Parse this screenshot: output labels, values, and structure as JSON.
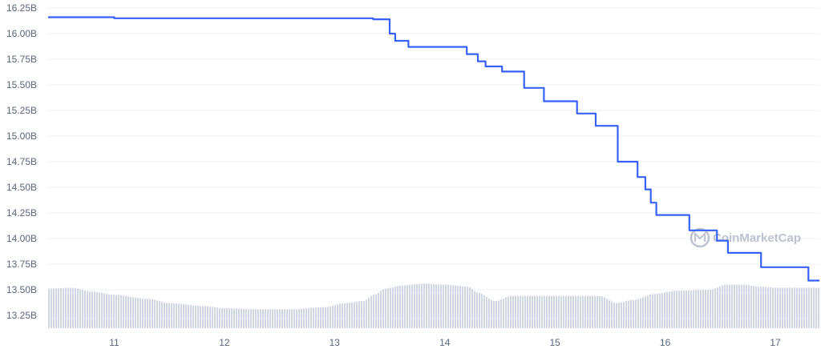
{
  "chart_data": {
    "type": "line",
    "title": "",
    "xlabel": "",
    "ylabel": "",
    "grid": true,
    "watermark": "CoinMarketCap",
    "colors": {
      "line": "#3861fb",
      "volume": "#cfd6e4",
      "grid": "#eff2f5",
      "text": "#58667e"
    },
    "ylim": [
      13.125,
      16.25
    ],
    "xlim": [
      10.4,
      17.4
    ],
    "y_ticks": [
      16.25,
      16.0,
      15.75,
      15.5,
      15.25,
      15.0,
      14.75,
      14.5,
      14.25,
      14.0,
      13.75,
      13.5,
      13.25
    ],
    "y_tick_labels": [
      "16.25B",
      "16.00B",
      "15.75B",
      "15.50B",
      "15.25B",
      "15.00B",
      "14.75B",
      "14.50B",
      "14.25B",
      "14.00B",
      "13.75B",
      "13.50B",
      "13.25B"
    ],
    "x_ticks": [
      11,
      12,
      13,
      14,
      15,
      16,
      17
    ],
    "x_tick_labels": [
      "11",
      "12",
      "13",
      "14",
      "15",
      "16",
      "17"
    ],
    "series": [
      {
        "x": [
          10.4,
          11.0,
          12.0,
          13.0,
          13.35,
          13.47,
          13.5,
          13.52,
          13.55,
          13.62,
          13.67,
          13.9,
          13.97,
          14.2,
          14.23,
          14.3,
          14.37,
          14.52,
          14.7,
          14.72,
          14.85,
          14.9,
          15.05,
          15.15,
          15.2,
          15.37,
          15.4,
          15.57,
          15.6,
          15.75,
          15.77,
          15.82,
          15.87,
          15.92,
          16.2,
          16.22,
          16.45,
          16.47,
          16.55,
          16.57,
          16.85,
          16.87,
          17.25,
          17.3,
          17.4
        ],
        "y": [
          16.16,
          16.15,
          16.15,
          16.15,
          16.14,
          16.14,
          16.0,
          16.0,
          15.93,
          15.93,
          15.87,
          15.87,
          15.87,
          15.8,
          15.8,
          15.73,
          15.68,
          15.63,
          15.63,
          15.47,
          15.47,
          15.34,
          15.34,
          15.34,
          15.22,
          15.1,
          15.1,
          14.75,
          14.75,
          14.6,
          14.6,
          14.48,
          14.35,
          14.23,
          14.23,
          14.08,
          14.08,
          13.98,
          13.98,
          13.86,
          13.86,
          13.72,
          13.72,
          13.59,
          13.59
        ]
      }
    ],
    "volume": {
      "x": [
        10.4,
        10.6,
        10.8,
        11.0,
        11.3,
        11.5,
        11.8,
        12.0,
        12.3,
        12.6,
        12.9,
        13.1,
        13.25,
        13.35,
        13.45,
        13.6,
        13.8,
        14.0,
        14.2,
        14.3,
        14.45,
        14.6,
        15.0,
        15.4,
        15.55,
        15.7,
        15.9,
        16.1,
        16.4,
        16.55,
        16.7,
        16.85,
        17.0,
        17.2,
        17.4
      ],
      "y": [
        13.51,
        13.52,
        13.48,
        13.45,
        13.41,
        13.37,
        13.34,
        13.32,
        13.31,
        13.31,
        13.33,
        13.37,
        13.39,
        13.45,
        13.51,
        13.54,
        13.56,
        13.55,
        13.53,
        13.47,
        13.39,
        13.44,
        13.44,
        13.44,
        13.37,
        13.4,
        13.46,
        13.49,
        13.5,
        13.55,
        13.55,
        13.53,
        13.52,
        13.52,
        13.52
      ]
    }
  }
}
